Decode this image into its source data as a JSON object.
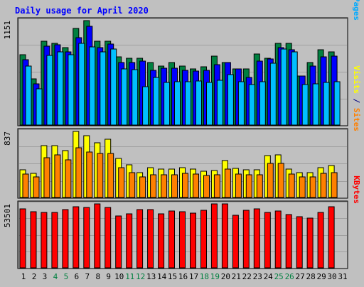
{
  "chart_data": {
    "type": "bar",
    "title": "Daily usage for April 2020",
    "days": [
      "1",
      "2",
      "3",
      "4",
      "5",
      "6",
      "7",
      "8",
      "9",
      "10",
      "11",
      "12",
      "13",
      "14",
      "15",
      "16",
      "17",
      "18",
      "19",
      "20",
      "21",
      "22",
      "23",
      "24",
      "25",
      "26",
      "27",
      "28",
      "29",
      "30",
      "31"
    ],
    "weekend_days": [
      "4",
      "5",
      "11",
      "12",
      "18",
      "19",
      "25",
      "26"
    ],
    "panels": [
      {
        "id": "hits",
        "max_label": "1151",
        "ymax": 1151,
        "right_label_parts": [
          {
            "text": "Pages",
            "color": "#00aaff"
          },
          {
            "text": " / ",
            "color": "#000080"
          },
          {
            "text": "Files",
            "color": "#0000ff"
          },
          {
            "text": " / ",
            "color": "#000080"
          },
          {
            "text": "Hits",
            "color": "#008040"
          }
        ],
        "series": [
          {
            "name": "Hits",
            "color": "#008040",
            "values": [
              779,
              517,
              929,
              905,
              857,
              1063,
              1151,
              929,
              929,
              757,
              741,
              741,
              695,
              655,
              695,
              655,
              623,
              649,
              762,
              695,
              623,
              623,
              786,
              741,
              900,
              905,
              542,
              695,
              835,
              812,
              0
            ]
          },
          {
            "name": "Files",
            "color": "#0000ff",
            "values": [
              725,
              462,
              869,
              890,
              812,
              967,
              1087,
              857,
              895,
              695,
              695,
              707,
              608,
              627,
              627,
              608,
              601,
              608,
              666,
              695,
              623,
              527,
              709,
              728,
              857,
              833,
              542,
              654,
              754,
              762,
              0
            ]
          },
          {
            "name": "Pages",
            "color": "#00bfff",
            "values": [
              653,
              406,
              768,
              812,
              780,
              900,
              866,
              812,
              839,
              621,
              614,
              424,
              526,
              474,
              485,
              485,
              490,
              474,
              498,
              560,
              485,
              450,
              485,
              683,
              842,
              812,
              453,
              462,
              474,
              485,
              0
            ]
          }
        ]
      },
      {
        "id": "visits",
        "max_label": "837",
        "ymax": 837,
        "right_label_parts": [
          {
            "text": "Sites",
            "color": "#ff8000"
          },
          {
            "text": " / ",
            "color": "#000080"
          },
          {
            "text": "Visits",
            "color": "#ffff00"
          }
        ],
        "series": [
          {
            "name": "Visits",
            "color": "#ffff00",
            "values": [
              355,
              309,
              661,
              661,
              595,
              837,
              784,
              697,
              739,
              496,
              416,
              325,
              382,
              364,
              364,
              382,
              364,
              342,
              346,
              475,
              377,
              355,
              355,
              535,
              547,
              364,
              318,
              323,
              382,
              411,
              0
            ]
          },
          {
            "name": "Sites",
            "color": "#ff8000",
            "values": [
              300,
              264,
              508,
              543,
              481,
              633,
              576,
              562,
              557,
              382,
              318,
              270,
              296,
              296,
              296,
              309,
              300,
              287,
              296,
              364,
              300,
              296,
              296,
              433,
              433,
              300,
              270,
              270,
              309,
              323,
              0
            ]
          }
        ]
      },
      {
        "id": "kbytes",
        "max_label": "53501",
        "ymax": 53501,
        "right_label_parts": [
          {
            "text": "KBytes",
            "color": "#ff0000"
          }
        ],
        "series": [
          {
            "name": "KBytes",
            "color": "#ff0000",
            "values": [
              49118,
              47054,
              46228,
              46641,
              48705,
              51181,
              50768,
              53501,
              50768,
              43339,
              45403,
              48705,
              48705,
              44990,
              47467,
              47054,
              45816,
              48292,
              53501,
              53501,
              44165,
              48292,
              49531,
              46641,
              47467,
              44577,
              42926,
              41688,
              46641,
              51181,
              0
            ]
          }
        ]
      }
    ]
  }
}
